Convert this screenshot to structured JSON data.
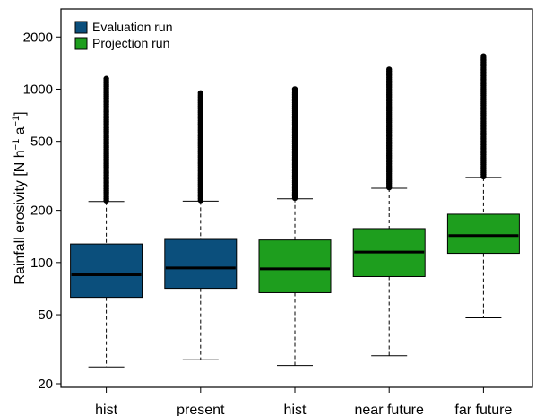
{
  "chart_data": {
    "type": "boxplot",
    "ylabel": "Rainfall erosivity [N h",
    "ylabel_sup1": "−1",
    "ylabel_mid": " a",
    "ylabel_sup2": "−1",
    "ylabel_end": "]",
    "yscale": "log",
    "ylim": [
      20,
      2800
    ],
    "yticks": [
      20,
      50,
      100,
      200,
      500,
      1000,
      2000
    ],
    "legend": {
      "placement": "top-left",
      "entries": [
        {
          "label": "Evaluation run",
          "color": "#0b4f7c"
        },
        {
          "label": "Projection run",
          "color": "#1e9e1e"
        }
      ]
    },
    "boxes": [
      {
        "category": "hist",
        "series": "Evaluation run",
        "whisker_low": 25,
        "q1": 63,
        "median": 85,
        "q3": 128,
        "whisker_high": 225,
        "outlier_max": 1150
      },
      {
        "category": "present",
        "series": "Evaluation run",
        "whisker_low": 27.5,
        "q1": 71,
        "median": 93,
        "q3": 136,
        "whisker_high": 226,
        "outlier_max": 950
      },
      {
        "category": "hist",
        "series": "Projection run",
        "whisker_low": 25.5,
        "q1": 67,
        "median": 92,
        "q3": 135,
        "whisker_high": 233,
        "outlier_max": 1000
      },
      {
        "category": "near future",
        "series": "Projection run",
        "whisker_low": 29,
        "q1": 83,
        "median": 115,
        "q3": 157,
        "whisker_high": 268,
        "outlier_max": 1300
      },
      {
        "category": "far future",
        "series": "Projection run",
        "whisker_low": 48,
        "q1": 113,
        "median": 143,
        "q3": 190,
        "whisker_high": 310,
        "outlier_max": 1550
      }
    ]
  }
}
